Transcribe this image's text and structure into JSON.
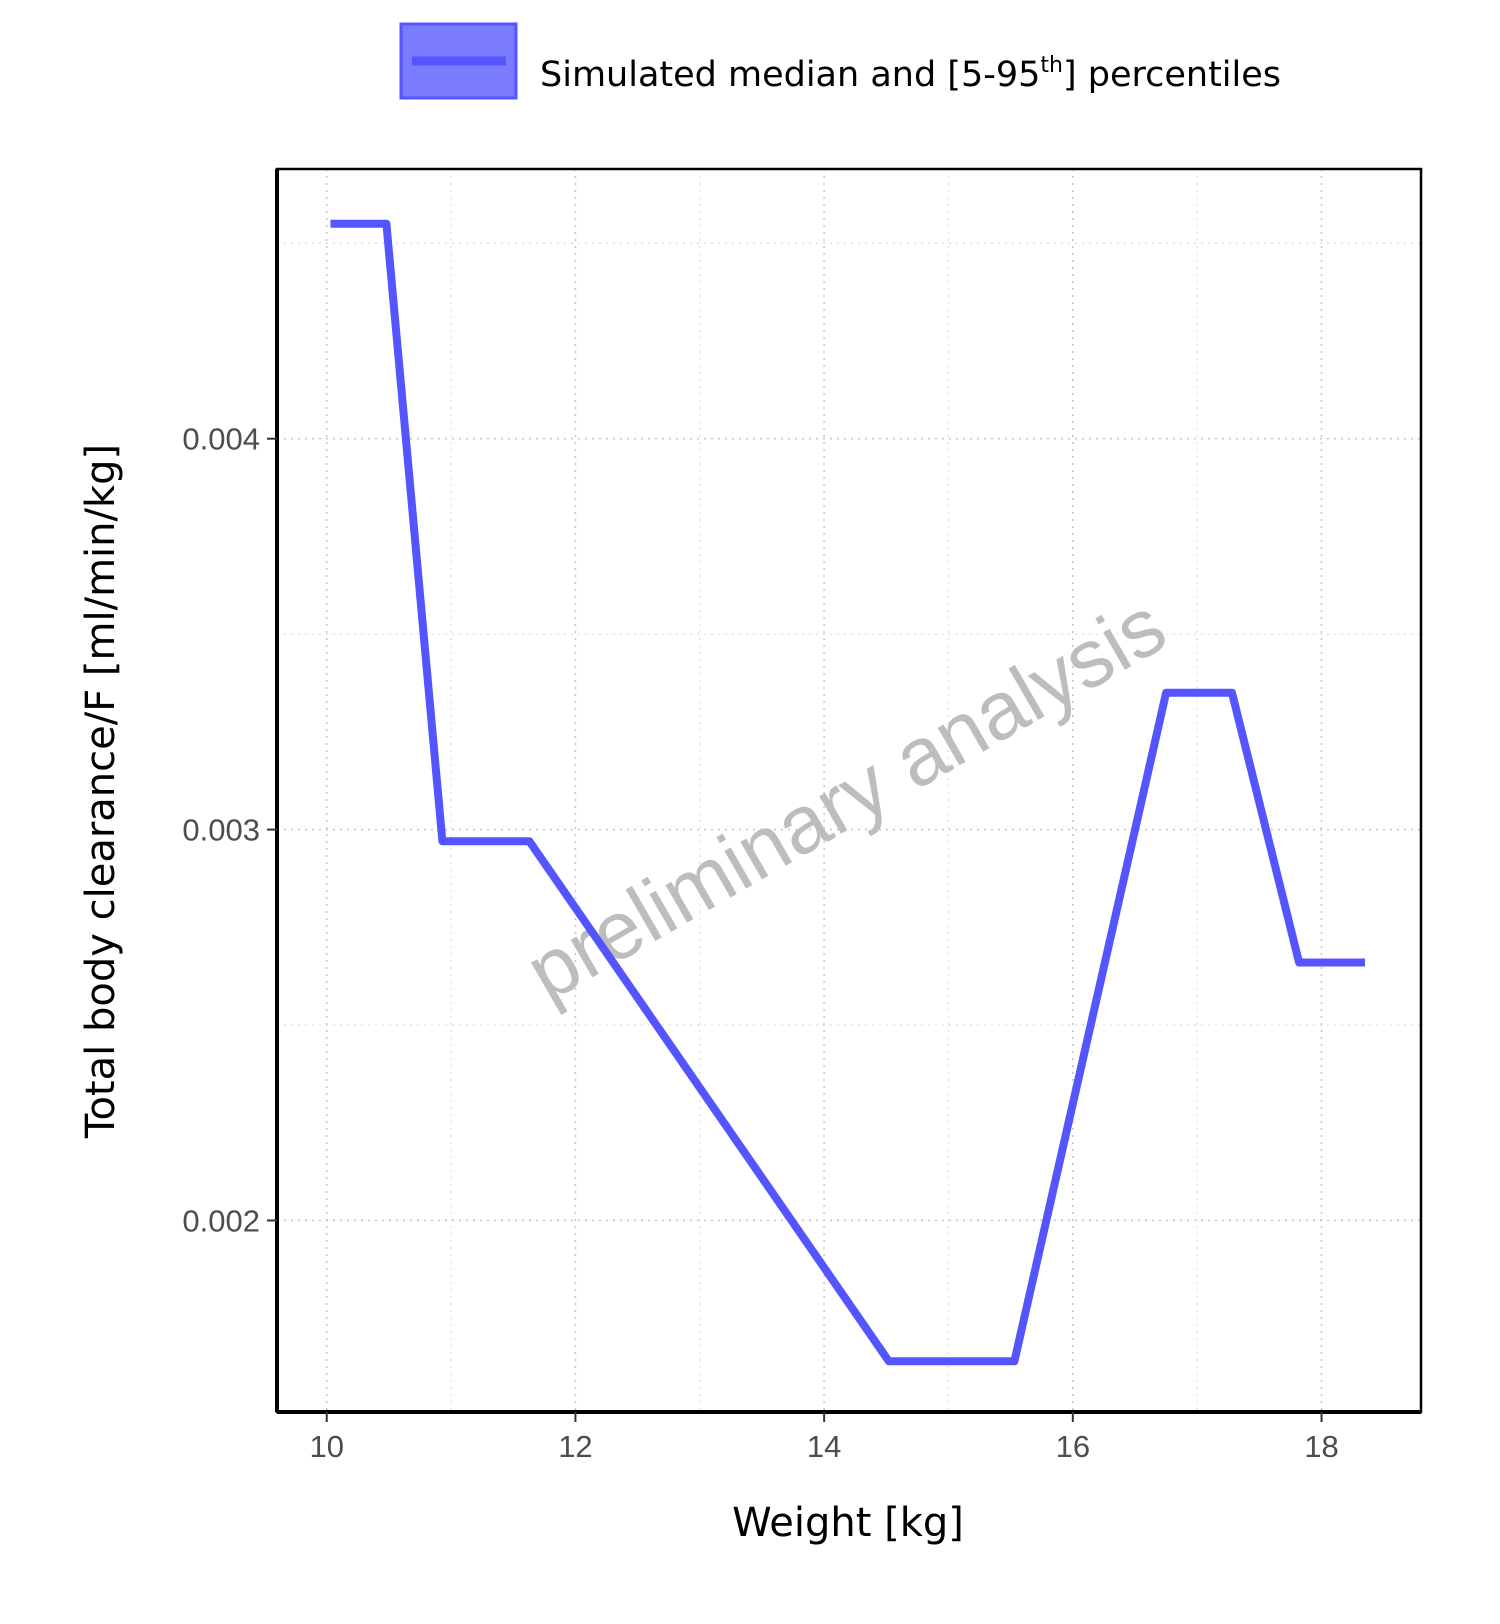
{
  "chart_data": {
    "type": "line",
    "xlabel": "Weight [kg]",
    "ylabel": "Total body clearance/F [ml/min/kg]",
    "xlim": [
      9.6,
      18.8
    ],
    "ylim": [
      0.00151,
      0.00469
    ],
    "x_ticks": [
      10,
      12,
      14,
      16,
      18
    ],
    "x_tick_labels": [
      "10",
      "12",
      "14",
      "16",
      "18"
    ],
    "y_ticks": [
      0.002,
      0.003,
      0.004
    ],
    "y_tick_labels": [
      "0.002",
      "0.003",
      "0.004"
    ],
    "grid": true,
    "legend": {
      "position": "top",
      "label_main": "Simulated median and [5-95",
      "label_sup": "th",
      "label_end": "] percentiles"
    },
    "watermark": "preliminary analysis",
    "series": [
      {
        "color": "#5555ff",
        "x": [
          10.03,
          10.48,
          10.93,
          11.63,
          14.52,
          15.53,
          16.75,
          17.28,
          17.82,
          18.35
        ],
        "y": [
          0.00455,
          0.00455,
          0.00297,
          0.00297,
          0.00164,
          0.00164,
          0.00335,
          0.00335,
          0.00266,
          0.00266
        ]
      }
    ]
  }
}
